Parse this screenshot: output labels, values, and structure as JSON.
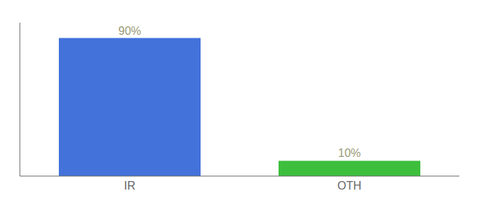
{
  "chart_data": {
    "type": "bar",
    "categories": [
      "IR",
      "OTH"
    ],
    "values": [
      90,
      10
    ],
    "colors": [
      "#4472db",
      "#3dbf3d"
    ],
    "value_labels": [
      "90%",
      "10%"
    ],
    "data_labels": true,
    "ylim": [
      0,
      100
    ],
    "tick_labels": "x"
  }
}
